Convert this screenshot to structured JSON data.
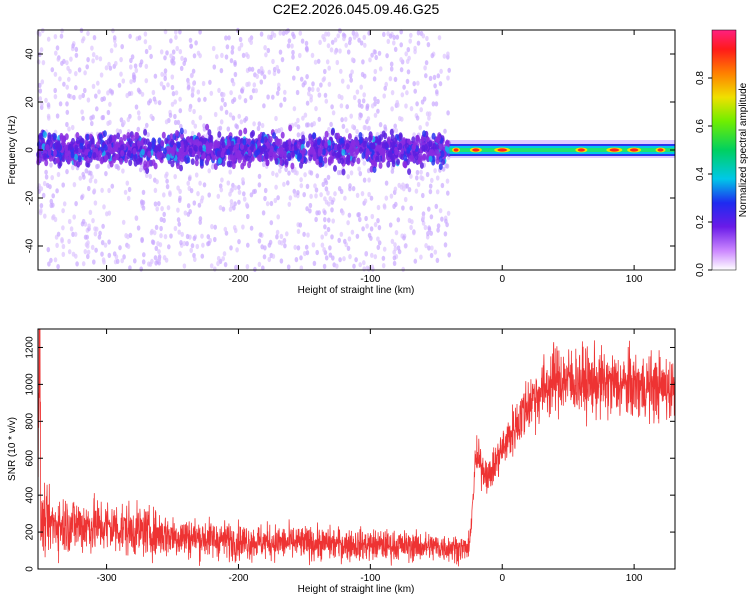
{
  "figure": {
    "title": "C2E2.2026.045.09.46.G25"
  },
  "chart_data": [
    {
      "type": "heatmap",
      "xlabel": "Height of straight line (km)",
      "ylabel": "Frequency (Hz)",
      "xlim": [
        -352,
        131
      ],
      "ylim": [
        -50,
        50
      ],
      "xticks": [
        -300,
        -200,
        -100,
        0,
        100
      ],
      "yticks": [
        -40,
        -20,
        0,
        20,
        40
      ],
      "colorbar": {
        "label": "Normalized spectral amplitude",
        "range": [
          0,
          1
        ],
        "ticks": [
          0.0,
          0.2,
          0.4,
          0.6,
          0.8
        ]
      },
      "regions": [
        {
          "x_range": [
            -352,
            -40
          ],
          "pattern": "broadband scatter, concentrated within about ±8 Hz of 0"
        },
        {
          "x_range": [
            -40,
            131
          ],
          "pattern": "narrow band centered near 0 Hz, high amplitude"
        }
      ],
      "grid": false
    },
    {
      "type": "line",
      "xlabel": "Height of straight line (km)",
      "ylabel": "SNR (10 * v/v)",
      "xlim": [
        -352,
        131
      ],
      "ylim": [
        0,
        1300
      ],
      "xticks": [
        -300,
        -200,
        -100,
        0,
        100
      ],
      "yticks": [
        0,
        200,
        400,
        600,
        800,
        1000,
        1200
      ],
      "color": "#ee3333",
      "series": [
        {
          "x": [
            -350,
            -300,
            -250,
            -200,
            -150,
            -100,
            -50,
            -25,
            -20,
            -10,
            0,
            20,
            40,
            80,
            131
          ],
          "y": [
            250,
            230,
            180,
            150,
            140,
            130,
            120,
            110,
            600,
            500,
            650,
            900,
            1030,
            1000,
            980
          ]
        }
      ],
      "grid": false
    }
  ]
}
